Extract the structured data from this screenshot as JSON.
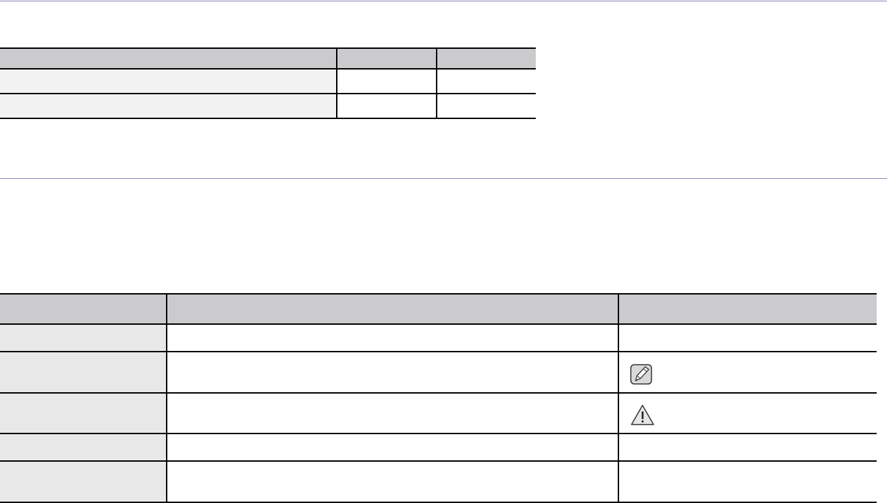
{
  "colors": {
    "section_rule": "#8a85b5",
    "header_fill": "#cbcbcd",
    "label_fill_table1": "#f2f2f2",
    "label_fill_table2": "#e8e8e8",
    "border": "#000000"
  },
  "table1": {
    "rows": 2,
    "columns": 3
  },
  "table2": {
    "rows": 5,
    "columns": 3,
    "icons": [
      "note-pencil-icon",
      "caution-triangle-icon"
    ]
  }
}
